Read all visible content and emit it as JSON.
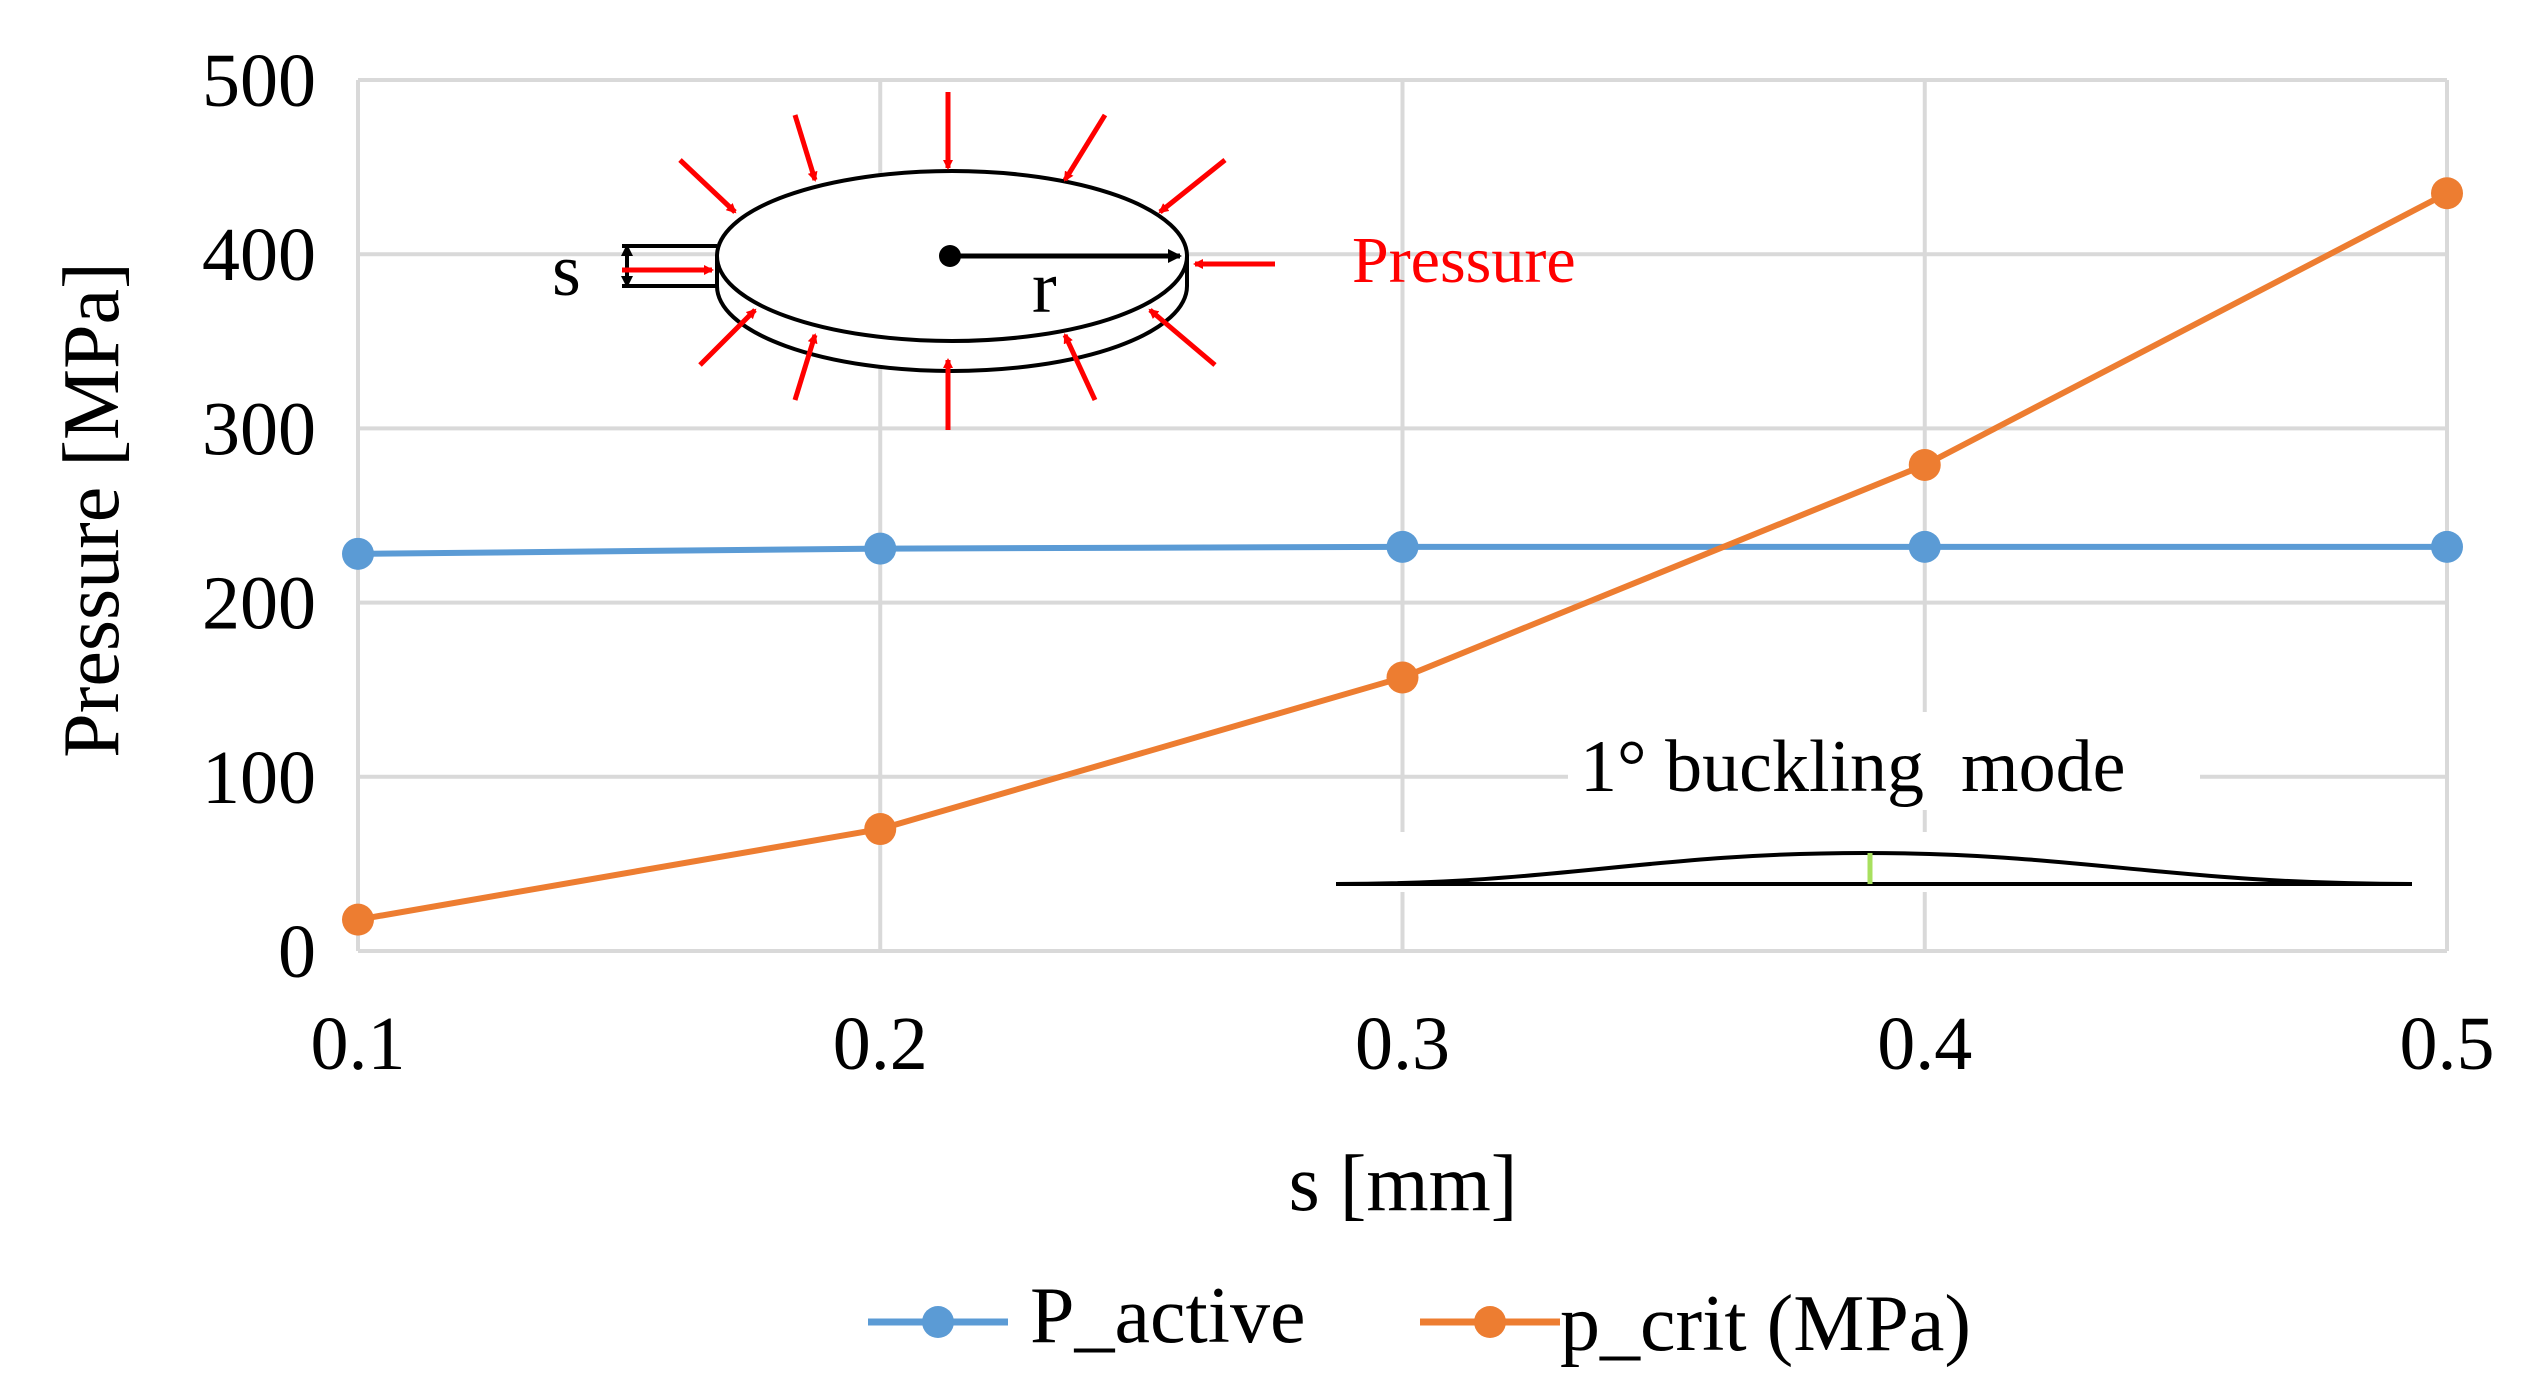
{
  "chart_data": {
    "type": "line",
    "title": "",
    "xlabel": "s [mm]",
    "ylabel": "Pressure [MPa]",
    "x": [
      0.1,
      0.2,
      0.3,
      0.4,
      0.5
    ],
    "x_tick_labels": [
      "0.1",
      "0.2",
      "0.3",
      "0.4",
      "0.5"
    ],
    "xlim": [
      0.1,
      0.5
    ],
    "ylim": [
      0,
      500
    ],
    "y_ticks": [
      0,
      100,
      200,
      300,
      400,
      500
    ],
    "y_tick_labels": [
      "0",
      "100",
      "200",
      "300",
      "400",
      "500"
    ],
    "grid": true,
    "legend_position": "bottom",
    "series": [
      {
        "name": "P_active",
        "color": "#5b9bd5",
        "values": [
          228,
          231,
          232,
          232,
          232
        ]
      },
      {
        "name": "p_crit (MPa)",
        "color": "#ed7d31",
        "values": [
          18,
          70,
          157,
          279,
          435
        ]
      }
    ],
    "annotations": {
      "inset_pressure_label": "Pressure",
      "inset_s_label": "s",
      "inset_r_label": "r",
      "buckling_label": "1° buckling  mode",
      "pressure_arrow_color": "#ff0000"
    }
  }
}
